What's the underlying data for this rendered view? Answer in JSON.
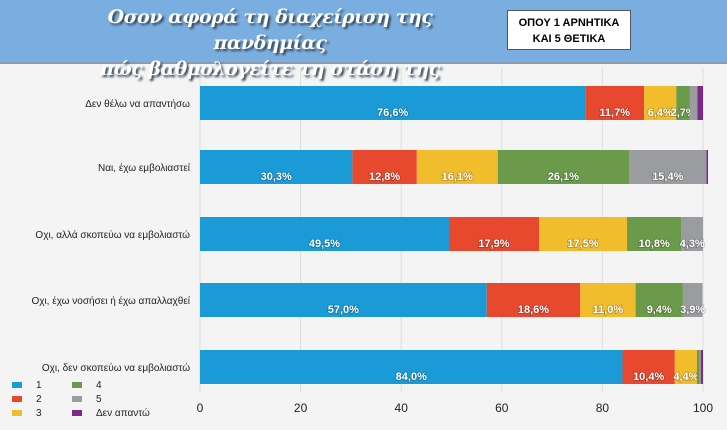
{
  "header": {
    "title_line1": "Οσον αφορά τη διαχείριση της πανδημίας",
    "title_line2": "πώς βαθμολογείτε τη στάση της κυβέρνησης;",
    "note_line1": "ΟΠΟΥ 1 ΑΡΝΗΤΙΚΑ",
    "note_line2": "ΚΑΙ 5 ΘΕΤΙΚΑ"
  },
  "chart_data": {
    "type": "bar",
    "orientation": "horizontal",
    "stacked": true,
    "categories": [
      "Δεν θέλω να απαντήσω",
      "Ναι, έχω εμβολιαστεί",
      "Οχι, αλλά σκοπεύω να εμβολιαστώ",
      "Οχι, έχω νοσήσει ή έχω απαλλαχθεί",
      "Οχι, δεν σκοπεύω να εμβολιαστώ"
    ],
    "series": [
      {
        "name": "1",
        "color": "#1a9bd7",
        "values": [
          76.6,
          30.3,
          49.5,
          57.0,
          84.0
        ],
        "labels": [
          "76,6%",
          "30,3%",
          "49,5%",
          "57,0%",
          "84,0%"
        ]
      },
      {
        "name": "2",
        "color": "#e8482e",
        "values": [
          11.7,
          12.8,
          17.9,
          18.6,
          10.4
        ],
        "labels": [
          "11,7%",
          "12,8%",
          "17,9%",
          "18,6%",
          "10,4%"
        ]
      },
      {
        "name": "3",
        "color": "#f2bd2c",
        "values": [
          6.4,
          16.1,
          17.5,
          11.0,
          4.4
        ],
        "labels": [
          "6,4%",
          "16,1%",
          "17,5%",
          "11,0%",
          "4,4%"
        ]
      },
      {
        "name": "4",
        "color": "#6a9a4a",
        "values": [
          2.7,
          26.1,
          10.8,
          9.4,
          0.5
        ],
        "labels": [
          "2,7%",
          "26,1%",
          "10,8%",
          "9,4%",
          ""
        ]
      },
      {
        "name": "5",
        "color": "#9a9c9f",
        "values": [
          1.5,
          15.4,
          4.3,
          3.9,
          0.3
        ],
        "labels": [
          "",
          "15,4%",
          "4,3%",
          "3,9%",
          ""
        ]
      },
      {
        "name": "Δεν απαντώ",
        "color": "#7b2a8a",
        "values": [
          1.1,
          0.3,
          0,
          0,
          0.4
        ],
        "labels": [
          "",
          "",
          "",
          "",
          ""
        ]
      }
    ],
    "xlim": [
      0,
      100
    ],
    "xticks": [
      "0",
      "20",
      "40",
      "60",
      "80",
      "100"
    ],
    "grid": true,
    "legend": "bottom-left"
  }
}
